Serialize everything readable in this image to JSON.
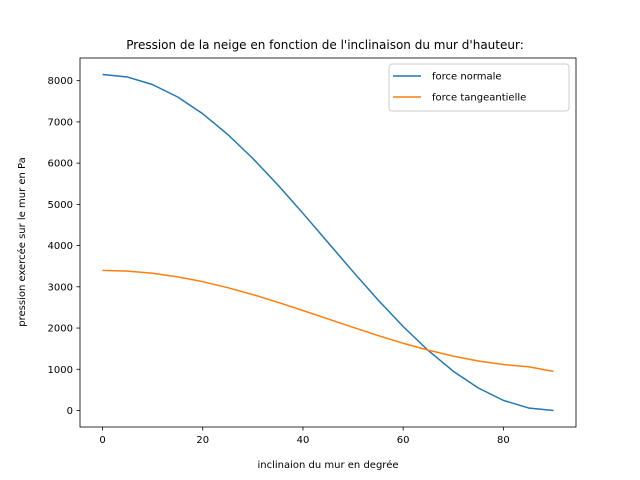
{
  "chart_data": {
    "type": "line",
    "title": "Pression de la neige en fonction de l'inclinaison du mur d'hauteur:",
    "xlabel": "inclinaion du mur en degrée",
    "ylabel": "pression exercée sur le mur en Pa",
    "xlim": [
      -4.5,
      94.5
    ],
    "ylim": [
      -400,
      8550
    ],
    "xticks": [
      0,
      20,
      40,
      60,
      80
    ],
    "yticks": [
      0,
      1000,
      2000,
      3000,
      4000,
      5000,
      6000,
      7000,
      8000
    ],
    "grid": false,
    "legend_position": "top-right",
    "x": [
      0,
      5,
      10,
      15,
      20,
      25,
      30,
      35,
      40,
      45,
      50,
      55,
      60,
      65,
      70,
      75,
      80,
      85,
      90
    ],
    "series": [
      {
        "name": "force normale",
        "color": "#1f77b4",
        "values": [
          8150,
          8088,
          7904,
          7604,
          7197,
          6694,
          6113,
          5469,
          4783,
          4075,
          3367,
          2681,
          2038,
          1456,
          953,
          546,
          246,
          62,
          0
        ]
      },
      {
        "name": "force tangeantielle",
        "color": "#ff7f0e",
        "values": [
          3400,
          3382,
          3329,
          3242,
          3125,
          2979,
          2811,
          2625,
          2426,
          2222,
          2017,
          1818,
          1632,
          1464,
          1319,
          1201,
          1115,
          1061,
          950
        ]
      }
    ]
  }
}
